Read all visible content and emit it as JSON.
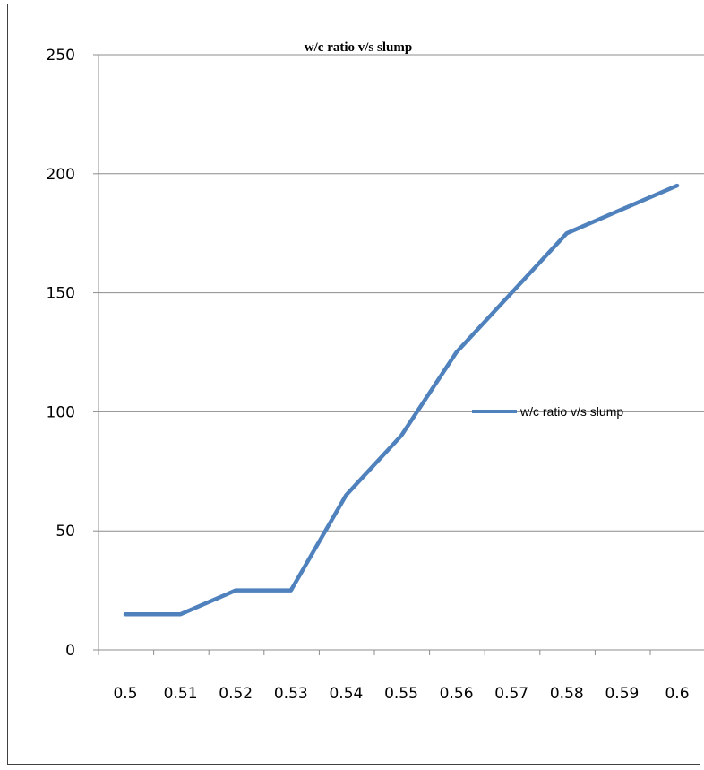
{
  "chart_data": {
    "type": "line",
    "title": "w/c ratio v/s slump",
    "xlabel": "",
    "ylabel": "",
    "categories": [
      "0.5",
      "0.51",
      "0.52",
      "0.53",
      "0.54",
      "0.55",
      "0.56",
      "0.57",
      "0.58",
      "0.59",
      "0.6"
    ],
    "y_ticks": [
      "0",
      "50",
      "100",
      "150",
      "200",
      "250"
    ],
    "ylim": [
      0,
      250
    ],
    "grid": "horizontal",
    "legend_position": "right",
    "series": [
      {
        "name": "w/c ratio v/s slump",
        "color": "#4F81BD",
        "values": [
          15,
          15,
          25,
          25,
          65,
          90,
          125,
          150,
          175,
          185,
          195
        ]
      }
    ]
  }
}
